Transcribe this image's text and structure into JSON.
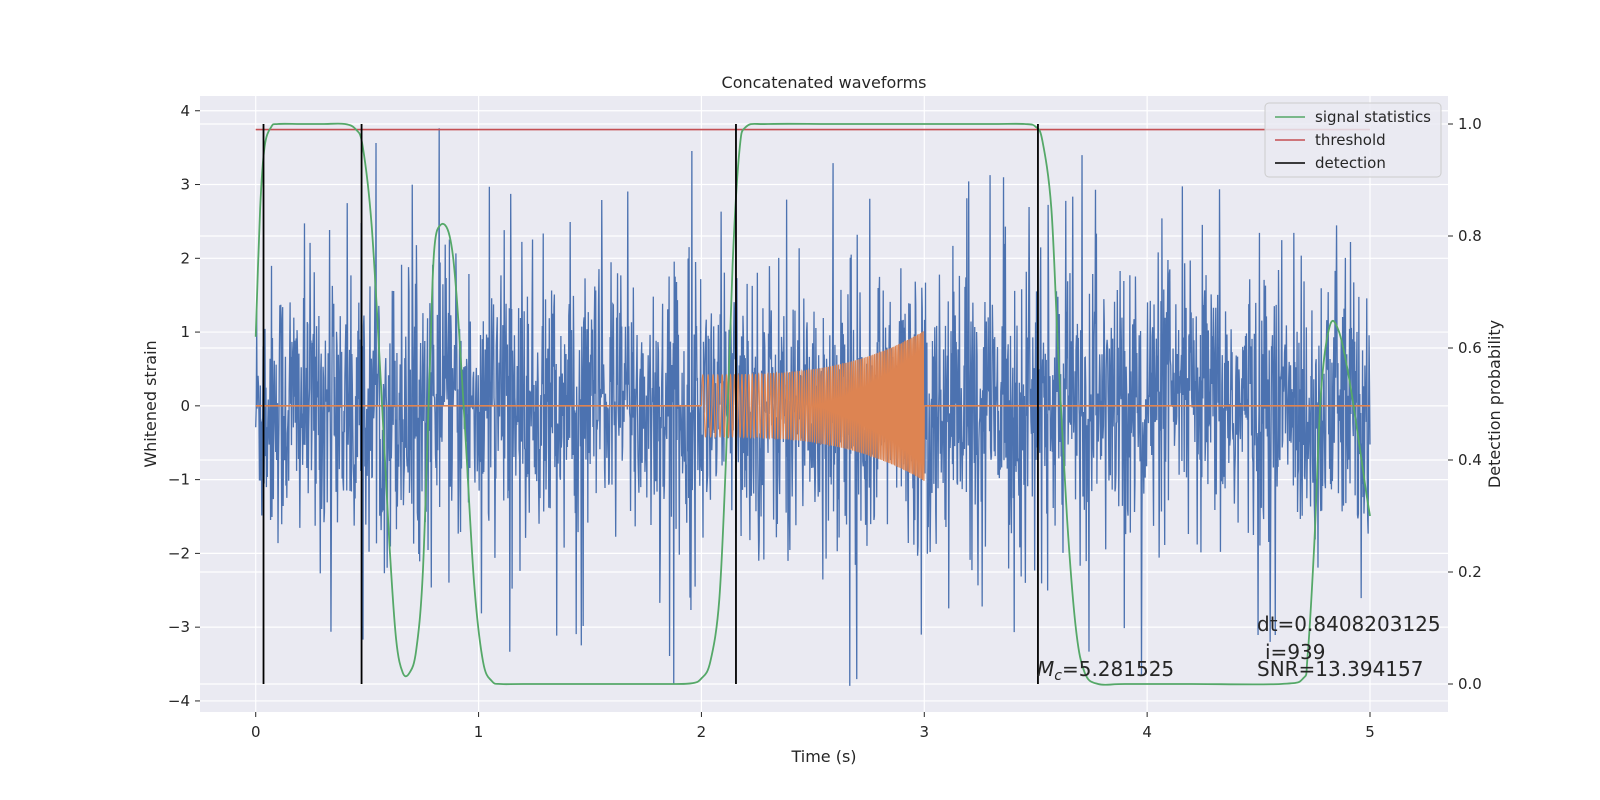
{
  "chart_data": {
    "type": "line",
    "title": "Concatenated waveforms",
    "xlabel": "Time (s)",
    "ylabel": "Whitened strain",
    "y2label": "Detection probability",
    "xlim": [
      -0.25,
      5.35
    ],
    "ylim": [
      -4.15,
      4.2
    ],
    "y2lim": [
      -0.05,
      1.05
    ],
    "xticks": [
      0,
      1,
      2,
      3,
      4,
      5
    ],
    "yticks": [
      -4,
      -3,
      -2,
      -1,
      0,
      1,
      2,
      3,
      4
    ],
    "y2ticks": [
      0.0,
      0.2,
      0.4,
      0.6,
      0.8,
      1.0
    ],
    "xtick_labels": [
      "0",
      "1",
      "2",
      "3",
      "4",
      "5"
    ],
    "ytick_labels": [
      "−4",
      "−3",
      "−2",
      "−1",
      "0",
      "1",
      "2",
      "3",
      "4"
    ],
    "y2tick_labels": [
      "0.0",
      "0.2",
      "0.4",
      "0.6",
      "0.8",
      "1.0"
    ],
    "grid": true,
    "legend_position": "top-right",
    "series": [
      {
        "name": "",
        "axis": "left",
        "kind": "noise",
        "x_range": [
          0,
          5
        ],
        "typical_amplitude": 1.3,
        "peak_amplitude": 3.8,
        "color": "#4c72b0"
      },
      {
        "name": "",
        "axis": "left",
        "kind": "chirp",
        "x_range": [
          2.0,
          3.0
        ],
        "start_amplitude": 0.42,
        "end_amplitude": 1.02,
        "color": "#dd8452"
      },
      {
        "name": "signal statistics",
        "axis": "right",
        "color": "#55a868",
        "x": [
          0.0,
          0.02,
          0.04,
          0.07,
          0.1,
          0.2,
          0.3,
          0.4,
          0.45,
          0.48,
          0.52,
          0.56,
          0.6,
          0.63,
          0.66,
          0.69,
          0.72,
          0.75,
          0.78,
          0.8,
          0.83,
          0.87,
          0.9,
          0.94,
          0.98,
          1.02,
          1.06,
          1.1,
          1.2,
          1.5,
          1.8,
          1.95,
          2.0,
          2.04,
          2.08,
          2.11,
          2.14,
          2.17,
          2.2,
          2.3,
          2.6,
          3.0,
          3.3,
          3.45,
          3.5,
          3.53,
          3.57,
          3.6,
          3.64,
          3.68,
          3.72,
          3.78,
          3.9,
          4.2,
          4.6,
          4.7,
          4.72,
          4.75,
          4.78,
          4.82,
          4.86,
          4.9,
          4.94,
          4.98,
          5.0
        ],
        "values": [
          0.62,
          0.85,
          0.96,
          0.995,
          1.0,
          1.0,
          1.0,
          1.0,
          0.99,
          0.96,
          0.82,
          0.55,
          0.25,
          0.08,
          0.02,
          0.02,
          0.06,
          0.2,
          0.55,
          0.77,
          0.82,
          0.8,
          0.7,
          0.45,
          0.18,
          0.04,
          0.005,
          0.0,
          0.0,
          0.0,
          0.0,
          0.001,
          0.01,
          0.04,
          0.15,
          0.4,
          0.75,
          0.95,
          0.995,
          1.0,
          1.0,
          1.0,
          1.0,
          1.0,
          0.995,
          0.97,
          0.85,
          0.6,
          0.3,
          0.1,
          0.02,
          0.0,
          0.0,
          0.0,
          0.0,
          0.01,
          0.05,
          0.25,
          0.52,
          0.64,
          0.63,
          0.56,
          0.46,
          0.35,
          0.3
        ]
      },
      {
        "name": "threshold",
        "axis": "right",
        "color": "#c44e52",
        "x": [
          0.0,
          5.0
        ],
        "values": [
          0.99,
          0.99
        ]
      },
      {
        "name": "detection",
        "axis": "right",
        "kind": "vertical-lines",
        "color": "#000000",
        "x": [
          0.035,
          0.475,
          2.155,
          3.51
        ],
        "y_range": [
          0.0,
          1.0
        ]
      }
    ],
    "annotations": [
      {
        "text": "M",
        "subscript": "c",
        "suffix": "=5.281525"
      },
      {
        "text": "dt=0.8408203125"
      },
      {
        "text": "i=939"
      },
      {
        "text": "SNR=13.394157"
      }
    ]
  }
}
